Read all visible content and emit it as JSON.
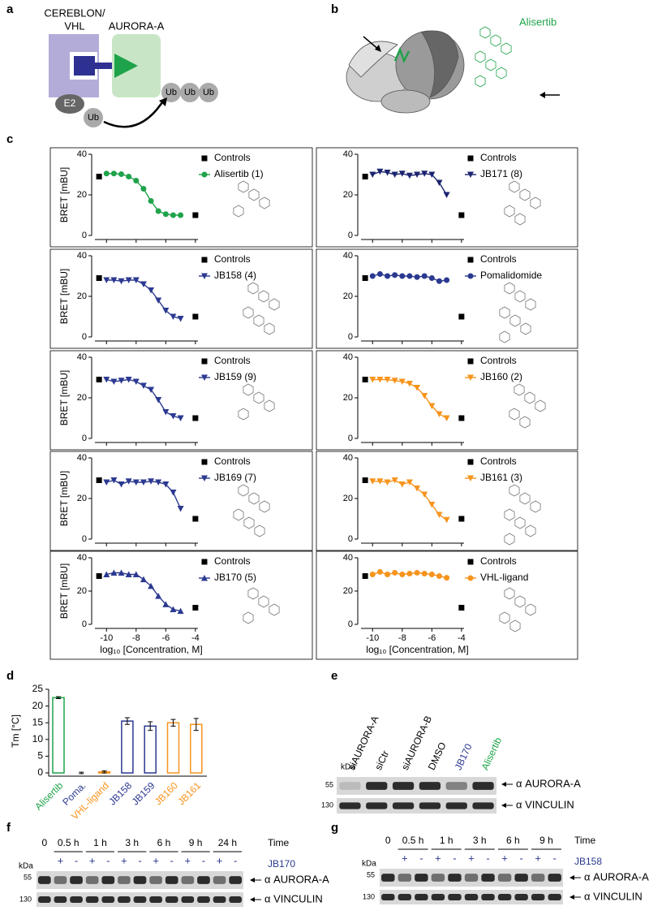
{
  "panel_labels": [
    "a",
    "b",
    "c",
    "d",
    "e",
    "f",
    "g"
  ],
  "panel_a": {
    "ligase": [
      "CEREBLON/",
      "VHL"
    ],
    "target": "AURORA-A",
    "e2": "E2",
    "ub": [
      "Ub",
      "Ub",
      "Ub",
      "Ub"
    ]
  },
  "panel_b": {
    "compound": "Alisertib"
  },
  "chart_data": [
    {
      "type": "line",
      "ylabel": "BRET [mBU]",
      "xlim": [
        -11,
        -3.5
      ],
      "ylim": [
        0,
        40
      ],
      "yticks": [
        0,
        20,
        40
      ],
      "xticks": [
        -10,
        -8,
        -6,
        -4
      ],
      "series": [
        {
          "name": "Controls",
          "color": "#000000",
          "marker": "square",
          "x": [
            -10.5,
            -4
          ],
          "values": [
            29,
            10
          ]
        },
        {
          "name": "Alisertib (1)",
          "color": "#1fa34a",
          "marker": "circle",
          "x": [
            -10,
            -9.5,
            -9,
            -8.5,
            -8,
            -7.5,
            -7,
            -6.5,
            -6,
            -5.5,
            -5
          ],
          "values": [
            30.5,
            30.5,
            30.2,
            29,
            27,
            23,
            17,
            12,
            10.5,
            10,
            10
          ]
        }
      ]
    },
    {
      "type": "line",
      "xlim": [
        -11,
        -3.5
      ],
      "ylim": [
        0,
        40
      ],
      "yticks": [
        0,
        20,
        40
      ],
      "xticks": [
        -10,
        -8,
        -6,
        -4
      ],
      "series": [
        {
          "name": "Controls",
          "color": "#000000",
          "marker": "square",
          "x": [
            -10.5,
            -4
          ],
          "values": [
            29,
            10
          ]
        },
        {
          "name": "JB171 (8)",
          "color": "#1b2470",
          "marker": "tri-down",
          "x": [
            -10,
            -9.5,
            -9,
            -8.5,
            -8,
            -7.5,
            -7,
            -6.5,
            -6,
            -5.5,
            -5
          ],
          "values": [
            30,
            31.5,
            31,
            30,
            30.5,
            29.5,
            30,
            30.5,
            30,
            26,
            20
          ]
        }
      ]
    },
    {
      "type": "line",
      "ylabel": "BRET [mBU]",
      "xlim": [
        -11,
        -3.5
      ],
      "ylim": [
        0,
        40
      ],
      "yticks": [
        0,
        20,
        40
      ],
      "xticks": [
        -10,
        -8,
        -6,
        -4
      ],
      "series": [
        {
          "name": "Controls",
          "color": "#000000",
          "marker": "square",
          "x": [
            -10.5,
            -4
          ],
          "values": [
            29,
            10
          ]
        },
        {
          "name": "JB158 (4)",
          "color": "#2b3990",
          "marker": "tri-down",
          "x": [
            -10,
            -9.5,
            -9,
            -8.5,
            -8,
            -7.5,
            -7,
            -6.5,
            -6,
            -5.5,
            -5
          ],
          "values": [
            28,
            28,
            27.5,
            28,
            28,
            26,
            23,
            18,
            13,
            10,
            9
          ]
        }
      ]
    },
    {
      "type": "line",
      "xlim": [
        -11,
        -3.5
      ],
      "ylim": [
        0,
        40
      ],
      "yticks": [
        0,
        20,
        40
      ],
      "xticks": [
        -10,
        -8,
        -6,
        -4
      ],
      "series": [
        {
          "name": "Controls",
          "color": "#000000",
          "marker": "square",
          "x": [
            -10.5,
            -4
          ],
          "values": [
            29,
            10
          ]
        },
        {
          "name": "Pomalidomide",
          "color": "#2b3990",
          "marker": "circle",
          "x": [
            -10,
            -9.5,
            -9,
            -8.5,
            -8,
            -7.5,
            -7,
            -6.5,
            -6,
            -5.5,
            -5
          ],
          "values": [
            30,
            31,
            30,
            30.5,
            30,
            30,
            29.5,
            30,
            29,
            27.5,
            28
          ]
        }
      ]
    },
    {
      "type": "line",
      "ylabel": "BRET [mBU]",
      "xlim": [
        -11,
        -3.5
      ],
      "ylim": [
        0,
        40
      ],
      "yticks": [
        0,
        20,
        40
      ],
      "xticks": [
        -10,
        -8,
        -6,
        -4
      ],
      "series": [
        {
          "name": "Controls",
          "color": "#000000",
          "marker": "square",
          "x": [
            -10.5,
            -4
          ],
          "values": [
            29,
            10
          ]
        },
        {
          "name": "JB159 (9)",
          "color": "#2b3990",
          "marker": "tri-down",
          "x": [
            -10,
            -9.5,
            -9,
            -8.5,
            -8,
            -7.5,
            -7,
            -6.5,
            -6,
            -5.5,
            -5
          ],
          "values": [
            29,
            28,
            28.5,
            29,
            28,
            26,
            24,
            19,
            13,
            11,
            10
          ]
        }
      ]
    },
    {
      "type": "line",
      "xlim": [
        -11,
        -3.5
      ],
      "ylim": [
        0,
        40
      ],
      "yticks": [
        0,
        20,
        40
      ],
      "xticks": [
        -10,
        -8,
        -6,
        -4
      ],
      "series": [
        {
          "name": "Controls",
          "color": "#000000",
          "marker": "square",
          "x": [
            -10.5,
            -4
          ],
          "values": [
            29,
            10
          ]
        },
        {
          "name": "JB160 (2)",
          "color": "#f7941d",
          "marker": "tri-down",
          "x": [
            -10,
            -9.5,
            -9,
            -8.5,
            -8,
            -7.5,
            -7,
            -6.5,
            -6,
            -5.5,
            -5
          ],
          "values": [
            29,
            29,
            29,
            28.5,
            28,
            27,
            25,
            21,
            16,
            12,
            10
          ]
        }
      ]
    },
    {
      "type": "line",
      "ylabel": "BRET [mBU]",
      "xlim": [
        -11,
        -3.5
      ],
      "ylim": [
        0,
        40
      ],
      "yticks": [
        0,
        20,
        40
      ],
      "xticks": [
        -10,
        -8,
        -6,
        -4
      ],
      "series": [
        {
          "name": "Controls",
          "color": "#000000",
          "marker": "square",
          "x": [
            -10.5,
            -4
          ],
          "values": [
            29,
            10
          ]
        },
        {
          "name": "JB169 (7)",
          "color": "#2b3990",
          "marker": "tri-down",
          "x": [
            -10,
            -9.5,
            -9,
            -8.5,
            -8,
            -7.5,
            -7,
            -6.5,
            -6,
            -5.5,
            -5
          ],
          "values": [
            28,
            29,
            27,
            28.5,
            28,
            28,
            28.5,
            28,
            27,
            23,
            15
          ]
        }
      ]
    },
    {
      "type": "line",
      "xlim": [
        -11,
        -3.5
      ],
      "ylim": [
        0,
        40
      ],
      "yticks": [
        0,
        20,
        40
      ],
      "xticks": [
        -10,
        -8,
        -6,
        -4
      ],
      "series": [
        {
          "name": "Controls",
          "color": "#000000",
          "marker": "square",
          "x": [
            -10.5,
            -4
          ],
          "values": [
            29,
            10
          ]
        },
        {
          "name": "JB161 (3)",
          "color": "#f7941d",
          "marker": "tri-down",
          "x": [
            -10,
            -9.5,
            -9,
            -8.5,
            -8,
            -7.5,
            -7,
            -6.5,
            -6,
            -5.5,
            -5
          ],
          "values": [
            28.5,
            28.5,
            28,
            29,
            27,
            28,
            25,
            22,
            17,
            12,
            9.5
          ]
        }
      ]
    },
    {
      "type": "line",
      "ylabel": "BRET [mBU]",
      "xlabel": "log₁₀ [Concentration, M]",
      "xlim": [
        -11,
        -3.5
      ],
      "ylim": [
        0,
        40
      ],
      "yticks": [
        0,
        20,
        40
      ],
      "xticks": [
        -10,
        -8,
        -6,
        -4
      ],
      "series": [
        {
          "name": "Controls",
          "color": "#000000",
          "marker": "square",
          "x": [
            -10.5,
            -4
          ],
          "values": [
            29,
            10
          ]
        },
        {
          "name": "JB170 (5)",
          "color": "#2b3990",
          "marker": "tri-up",
          "x": [
            -10,
            -9.5,
            -9,
            -8.5,
            -8,
            -7.5,
            -7,
            -6.5,
            -6,
            -5.5,
            -5
          ],
          "values": [
            30,
            31,
            31,
            30,
            30,
            27,
            23,
            17,
            12,
            9,
            8
          ]
        }
      ]
    },
    {
      "type": "line",
      "xlabel": "log₁₀ [Concentration, M]",
      "xlim": [
        -11,
        -3.5
      ],
      "ylim": [
        0,
        40
      ],
      "yticks": [
        0,
        20,
        40
      ],
      "xticks": [
        -10,
        -8,
        -6,
        -4
      ],
      "series": [
        {
          "name": "Controls",
          "color": "#000000",
          "marker": "square",
          "x": [
            -10.5,
            -4
          ],
          "values": [
            29,
            10
          ]
        },
        {
          "name": "VHL-ligand",
          "color": "#f7941d",
          "marker": "circle",
          "x": [
            -10,
            -9.5,
            -9,
            -8.5,
            -8,
            -7.5,
            -7,
            -6.5,
            -6,
            -5.5,
            -5
          ],
          "values": [
            30,
            31.5,
            30,
            31,
            30,
            30.5,
            31,
            30.5,
            30,
            29,
            28
          ]
        }
      ]
    },
    {
      "type": "bar",
      "ylabel": "Tm [°C]",
      "categories": [
        "Alisertib",
        "Poma.",
        "VHL-ligand",
        "JB158",
        "JB159",
        "JB160",
        "JB161"
      ],
      "values": [
        22.5,
        0,
        0.3,
        15.5,
        14,
        15,
        14.5
      ],
      "errors": [
        0.3,
        0.2,
        0.3,
        1,
        1.3,
        1,
        1.8
      ],
      "colors": [
        "#1fa34a",
        "#2b3990",
        "#f7941d",
        "#2b3990",
        "#2b3990",
        "#f7941d",
        "#f7941d"
      ],
      "ylim": [
        0,
        25
      ],
      "yticks": [
        0,
        5,
        10,
        15,
        20,
        25
      ]
    }
  ],
  "panel_e": {
    "lanes": [
      "siAURORA-A",
      "siCtr",
      "siAURORA-B",
      "DMSO",
      "JB170",
      "Alisertib"
    ],
    "lane_colors": [
      "#000000",
      "#000000",
      "#000000",
      "#000000",
      "#2b3990",
      "#1fa34a"
    ],
    "kda": "kDa",
    "markers": [
      "55",
      "130"
    ],
    "bands": [
      "α AURORA-A",
      "α VINCULIN"
    ]
  },
  "panel_f": {
    "times": [
      "0",
      "0.5 h",
      "1 h",
      "3 h",
      "6 h",
      "9 h",
      "24 h"
    ],
    "time_label": "Time",
    "treatment": "JB170",
    "signs": [
      "+",
      "-",
      "+",
      "-",
      "+",
      "-",
      "+",
      "-",
      "+",
      "-",
      "+",
      "-"
    ],
    "kda": "kDa",
    "markers": [
      "55",
      "130"
    ],
    "bands": [
      "α AURORA-A",
      "α VINCULIN"
    ]
  },
  "panel_g": {
    "times": [
      "0",
      "0.5 h",
      "1 h",
      "3 h",
      "6 h",
      "9 h"
    ],
    "time_label": "Time",
    "treatment": "JB158",
    "signs": [
      "+",
      "-",
      "+",
      "-",
      "+",
      "-",
      "+",
      "-",
      "+",
      "-"
    ],
    "kda": "kDa",
    "markers": [
      "55",
      "130"
    ],
    "bands": [
      "α AURORA-A",
      "α VINCULIN"
    ]
  }
}
